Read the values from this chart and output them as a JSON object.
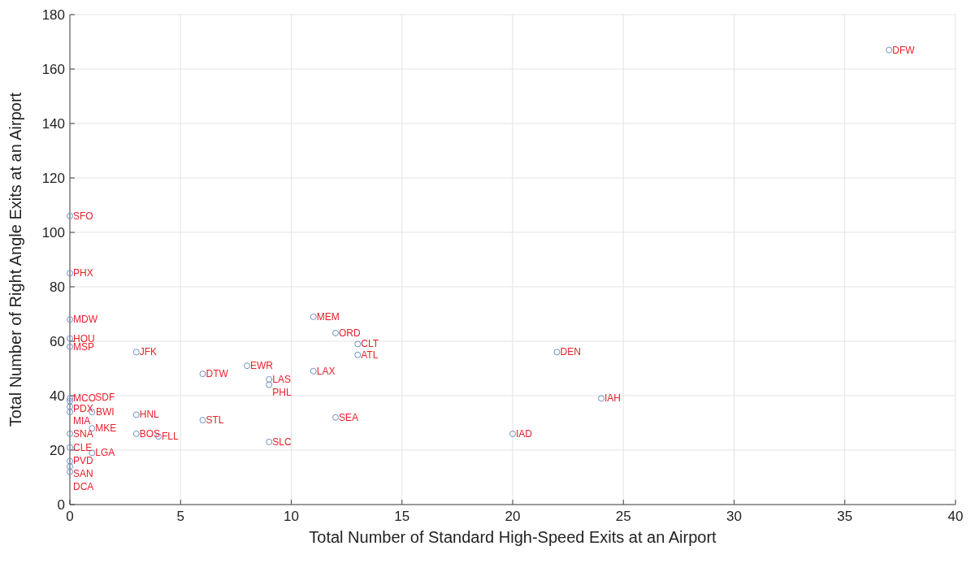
{
  "chart_data": {
    "type": "scatter",
    "xlabel": "Total Number of Standard High-Speed Exits at an Airport",
    "ylabel": "Total Number of Right Angle Exits at an Airport",
    "x": [
      37,
      0,
      0,
      0,
      0,
      0,
      3,
      11,
      12,
      13,
      13,
      22,
      8,
      6,
      11,
      9,
      9,
      24,
      0,
      0,
      0,
      0,
      1,
      0,
      0,
      0,
      0,
      0,
      1,
      1,
      3,
      3,
      4,
      6,
      9,
      12,
      20
    ],
    "series": [
      {
        "color": "#6f8fc4",
        "values": [
          167,
          106,
          85,
          68,
          61,
          58,
          56,
          69,
          63,
          59,
          55,
          56,
          51,
          48,
          49,
          46,
          44,
          39,
          39,
          38,
          36,
          34,
          34,
          26,
          21,
          16,
          14,
          12,
          28,
          19,
          33,
          26,
          25,
          31,
          23,
          32,
          26
        ]
      }
    ],
    "xlim": [
      0,
      40
    ],
    "ylim": [
      0,
      180
    ],
    "xticks": [
      0,
      5,
      10,
      15,
      20,
      25,
      30,
      35,
      40
    ],
    "yticks": [
      0,
      20,
      40,
      60,
      80,
      100,
      120,
      140,
      160,
      180
    ],
    "grid": true,
    "marker": "circle",
    "annotations": [
      {
        "text": "DFW",
        "x": 37,
        "y": 167
      },
      {
        "text": "SFO",
        "x": 0,
        "y": 106
      },
      {
        "text": "PHX",
        "x": 0,
        "y": 85
      },
      {
        "text": "MDW",
        "x": 0,
        "y": 68
      },
      {
        "text": "HOU",
        "x": 0,
        "y": 61
      },
      {
        "text": "MSP",
        "x": 0,
        "y": 58
      },
      {
        "text": "JFK",
        "x": 3,
        "y": 56
      },
      {
        "text": "MEM",
        "x": 11,
        "y": 69
      },
      {
        "text": "ORD",
        "x": 12,
        "y": 63
      },
      {
        "text": "CLT",
        "x": 13,
        "y": 59
      },
      {
        "text": "ATL",
        "x": 13,
        "y": 55
      },
      {
        "text": "DEN",
        "x": 22,
        "y": 56
      },
      {
        "text": "EWR",
        "x": 8,
        "y": 51
      },
      {
        "text": "DTW",
        "x": 6,
        "y": 48
      },
      {
        "text": "LAX",
        "x": 11,
        "y": 49
      },
      {
        "text": "LAS",
        "x": 9,
        "y": 46
      },
      {
        "text": "PHL",
        "x": 9,
        "y": 44
      },
      {
        "text": "IAH",
        "x": 24,
        "y": 39
      },
      {
        "text": "MCO",
        "x": 0,
        "y": 39
      },
      {
        "text": "PDX",
        "x": 0,
        "y": 38
      },
      {
        "text": "MIA",
        "x": 0,
        "y": 36
      },
      {
        "text": "BWI",
        "x": 0,
        "y": 34
      },
      {
        "text": "SDF",
        "x": 1,
        "y": 34
      },
      {
        "text": "SNA",
        "x": 0,
        "y": 26
      },
      {
        "text": "CLE",
        "x": 0,
        "y": 21
      },
      {
        "text": "PVD",
        "x": 0,
        "y": 16
      },
      {
        "text": "SAN",
        "x": 0,
        "y": 14
      },
      {
        "text": "DCA",
        "x": 0,
        "y": 12
      },
      {
        "text": "MKE",
        "x": 1,
        "y": 28
      },
      {
        "text": "LGA",
        "x": 1,
        "y": 19
      },
      {
        "text": "HNL",
        "x": 3,
        "y": 33
      },
      {
        "text": "BOS",
        "x": 3,
        "y": 26
      },
      {
        "text": "FLL",
        "x": 4,
        "y": 25
      },
      {
        "text": "STL",
        "x": 6,
        "y": 31
      },
      {
        "text": "SLC",
        "x": 9,
        "y": 23
      },
      {
        "text": "SEA",
        "x": 12,
        "y": 32
      },
      {
        "text": "IAD",
        "x": 20,
        "y": 26
      }
    ]
  }
}
